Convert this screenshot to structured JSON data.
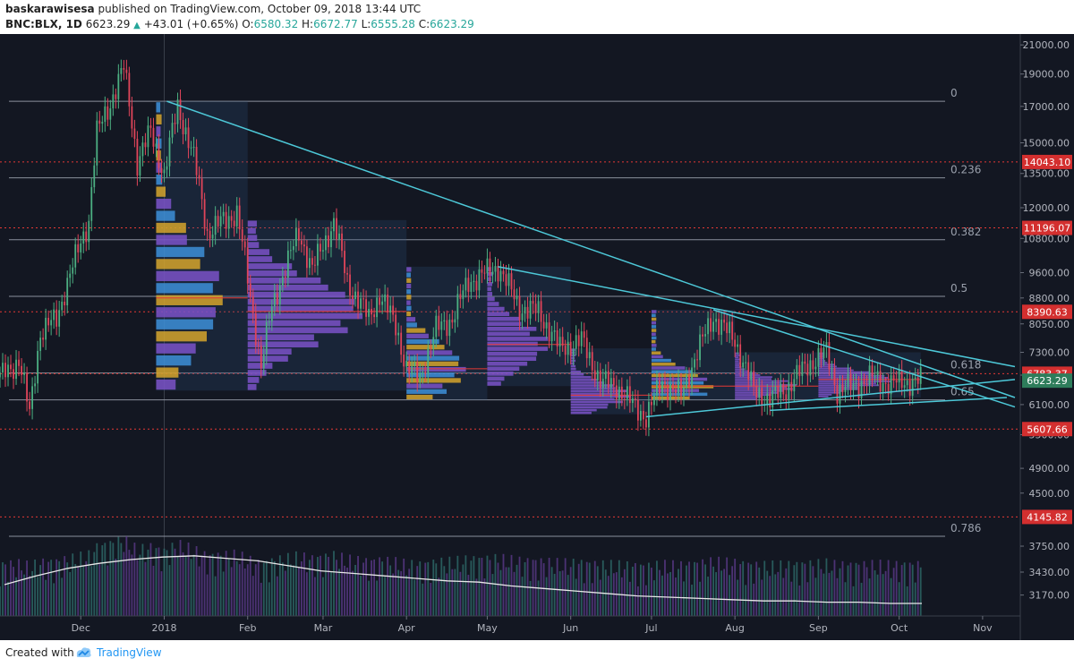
{
  "header": {
    "author": "baskarawisesa",
    "published": "published on TradingView.com, October 09, 2018 13:44 UTC",
    "symbol": "BNC:BLX, 1D",
    "last": "6623.29",
    "change": "+43.01 (+0.65%)",
    "open_label": "O:",
    "open": "6580.32",
    "high_label": "H:",
    "high": "6672.77",
    "low_label": "L:",
    "low": "6555.28",
    "close_label": "C:",
    "close": "6623.29"
  },
  "footer": {
    "created_with": "Created with",
    "brand": "TradingView"
  },
  "colors": {
    "background": "#131722",
    "up": "#4caf82",
    "down": "#e0455a",
    "trendline": "#4dc8d8",
    "fib_line": "#8a8f9c",
    "red_level": "#e53935",
    "vp_blue": "#3d8fd8",
    "vp_gold": "#d6a52c",
    "vp_purple": "#7b52c8",
    "volume_ma": "#e8e8e8"
  },
  "chart_data": {
    "type": "candlestick",
    "scale": "log",
    "ylim": [
      2950,
      21800
    ],
    "x_range": [
      "2017-11-01",
      "2018-11-15"
    ],
    "y_ticks": [
      21000,
      19000,
      17000,
      15000,
      13500,
      12000,
      10800,
      9600,
      8800,
      8050,
      7300,
      6750,
      6100,
      5500,
      4900,
      4500,
      3750,
      3430,
      3170
    ],
    "x_ticks": [
      {
        "label": "Dec",
        "date": "2017-12-01"
      },
      {
        "label": "2018",
        "date": "2018-01-01"
      },
      {
        "label": "Feb",
        "date": "2018-02-01"
      },
      {
        "label": "Mar",
        "date": "2018-03-01"
      },
      {
        "label": "Apr",
        "date": "2018-04-01"
      },
      {
        "label": "May",
        "date": "2018-05-01"
      },
      {
        "label": "Jun",
        "date": "2018-06-01"
      },
      {
        "label": "Jul",
        "date": "2018-07-01"
      },
      {
        "label": "Aug",
        "date": "2018-08-01"
      },
      {
        "label": "Sep",
        "date": "2018-09-01"
      },
      {
        "label": "Oct",
        "date": "2018-10-01"
      },
      {
        "label": "Nov",
        "date": "2018-11-01"
      }
    ],
    "fib_levels": [
      {
        "label": "0",
        "value": 17300
      },
      {
        "label": "0.236",
        "value": 13300
      },
      {
        "label": "0.382",
        "value": 10750
      },
      {
        "label": "0.5",
        "value": 8850
      },
      {
        "label": "0.618",
        "value": 6800
      },
      {
        "label": "0.65",
        "value": 6200
      },
      {
        "label": "0.786",
        "value": 3880
      }
    ],
    "price_labels": [
      {
        "label": "14043.10",
        "value": 14043.1
      },
      {
        "label": "11196.07",
        "value": 11196.07
      },
      {
        "label": "8390.63",
        "value": 8390.63
      },
      {
        "label": "6783.37",
        "value": 6783.37
      },
      {
        "label": "6623.29",
        "value": 6623.29
      },
      {
        "label": "5607.66",
        "value": 5607.66
      },
      {
        "label": "4145.82",
        "value": 4145.82
      }
    ],
    "trendlines": [
      {
        "from": [
          "2018-01-02",
          17300
        ],
        "to": [
          "2018-11-13",
          6250
        ]
      },
      {
        "from": [
          "2018-05-05",
          9800
        ],
        "to": [
          "2018-11-13",
          6950
        ]
      },
      {
        "from": [
          "2018-07-24",
          8450
        ],
        "to": [
          "2018-11-13",
          6050
        ]
      },
      {
        "from": [
          "2018-06-29",
          5850
        ],
        "to": [
          "2018-11-13",
          6650
        ]
      },
      {
        "from": [
          "2018-08-14",
          5980
        ],
        "to": [
          "2018-11-10",
          6250
        ]
      }
    ],
    "price_path": [
      [
        "2017-11-01",
        6700
      ],
      [
        "2017-11-08",
        7100
      ],
      [
        "2017-11-12",
        5900
      ],
      [
        "2017-11-16",
        7800
      ],
      [
        "2017-11-22",
        8200
      ],
      [
        "2017-11-28",
        9800
      ],
      [
        "2017-12-04",
        11500
      ],
      [
        "2017-12-07",
        15500
      ],
      [
        "2017-12-12",
        17200
      ],
      [
        "2017-12-17",
        19400
      ],
      [
        "2017-12-22",
        14000
      ],
      [
        "2017-12-27",
        15600
      ],
      [
        "2018-01-01",
        13400
      ],
      [
        "2018-01-06",
        17000
      ],
      [
        "2018-01-12",
        14200
      ],
      [
        "2018-01-17",
        11000
      ],
      [
        "2018-01-22",
        11400
      ],
      [
        "2018-01-28",
        11800
      ],
      [
        "2018-02-02",
        8800
      ],
      [
        "2018-02-06",
        6950
      ],
      [
        "2018-02-10",
        8500
      ],
      [
        "2018-02-14",
        9500
      ],
      [
        "2018-02-20",
        11000
      ],
      [
        "2018-02-25",
        9700
      ],
      [
        "2018-03-05",
        11400
      ],
      [
        "2018-03-10",
        9300
      ],
      [
        "2018-03-18",
        8200
      ],
      [
        "2018-03-22",
        8900
      ],
      [
        "2018-03-28",
        8000
      ],
      [
        "2018-04-01",
        6900
      ],
      [
        "2018-04-06",
        6700
      ],
      [
        "2018-04-12",
        7900
      ],
      [
        "2018-04-18",
        8200
      ],
      [
        "2018-04-24",
        9300
      ],
      [
        "2018-05-05",
        9800
      ],
      [
        "2018-05-13",
        8500
      ],
      [
        "2018-05-20",
        8400
      ],
      [
        "2018-05-28",
        7400
      ],
      [
        "2018-06-05",
        7600
      ],
      [
        "2018-06-12",
        6600
      ],
      [
        "2018-06-18",
        6500
      ],
      [
        "2018-06-24",
        6100
      ],
      [
        "2018-06-29",
        5850
      ],
      [
        "2018-07-05",
        6600
      ],
      [
        "2018-07-12",
        6300
      ],
      [
        "2018-07-18",
        7300
      ],
      [
        "2018-07-24",
        8250
      ],
      [
        "2018-08-01",
        7600
      ],
      [
        "2018-08-08",
        6400
      ],
      [
        "2018-08-14",
        6200
      ],
      [
        "2018-08-20",
        6450
      ],
      [
        "2018-08-28",
        7000
      ],
      [
        "2018-09-04",
        7300
      ],
      [
        "2018-09-08",
        6400
      ],
      [
        "2018-09-14",
        6500
      ],
      [
        "2018-09-21",
        6700
      ],
      [
        "2018-09-28",
        6550
      ],
      [
        "2018-10-03",
        6600
      ],
      [
        "2018-10-09",
        6623
      ]
    ],
    "volume_levels": [
      0.25,
      0.32,
      0.38,
      0.42,
      0.45,
      0.47,
      0.48,
      0.46,
      0.44,
      0.4,
      0.36,
      0.34,
      0.32,
      0.3,
      0.28,
      0.27,
      0.24,
      0.22,
      0.2,
      0.18,
      0.16,
      0.15,
      0.14,
      0.13,
      0.12,
      0.12,
      0.11,
      0.11,
      0.1,
      0.1
    ],
    "volume_profiles": [
      {
        "start": "2017-12-29",
        "end": "2018-02-01",
        "top": 17300,
        "bottom": 6400,
        "poc": 8800,
        "color": "mixed"
      },
      {
        "start": "2018-02-01",
        "end": "2018-04-01",
        "top": 11500,
        "bottom": 6400,
        "poc": 8400,
        "color": "purple"
      },
      {
        "start": "2018-04-01",
        "end": "2018-05-01",
        "top": 9800,
        "bottom": 6200,
        "poc": 6900,
        "color": "mixed"
      },
      {
        "start": "2018-05-01",
        "end": "2018-06-01",
        "top": 9800,
        "bottom": 6500,
        "poc": 7500,
        "color": "purple"
      },
      {
        "start": "2018-06-01",
        "end": "2018-07-01",
        "top": 7400,
        "bottom": 5900,
        "poc": 6300,
        "color": "purple"
      },
      {
        "start": "2018-07-01",
        "end": "2018-08-01",
        "top": 8450,
        "bottom": 6200,
        "poc": 6500,
        "color": "mixed"
      },
      {
        "start": "2018-08-01",
        "end": "2018-09-01",
        "top": 7300,
        "bottom": 6200,
        "poc": 6500,
        "color": "purple"
      },
      {
        "start": "2018-09-01",
        "end": "2018-10-09",
        "top": 7300,
        "bottom": 6250,
        "poc": 6650,
        "color": "purple"
      }
    ]
  }
}
